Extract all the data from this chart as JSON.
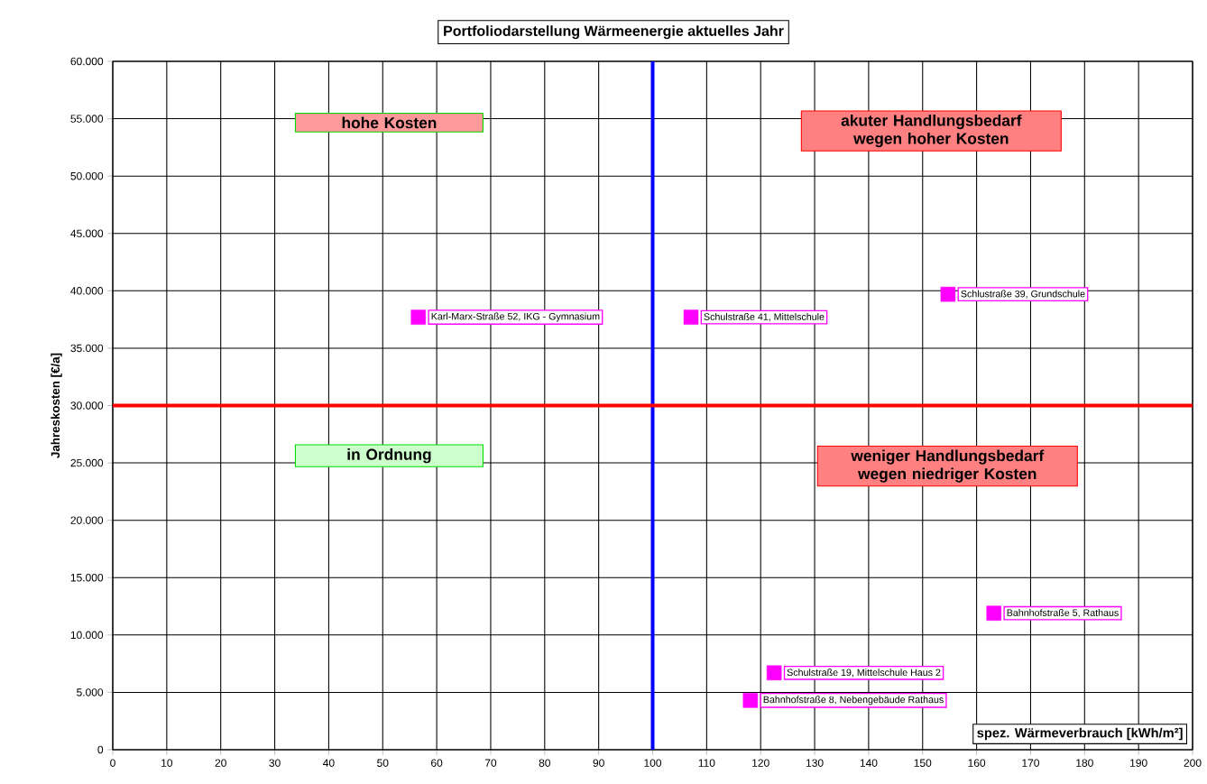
{
  "chart_data": {
    "type": "scatter",
    "title": "Portfoliodarstellung Wärmeenergie aktuelles Jahr",
    "xlabel": "spez. Wärmeverbrauch [kWh/m²]",
    "ylabel": "Jahreskosten [€/a]",
    "x": [
      56.6,
      107.1,
      154.7,
      163.2,
      122.5,
      118.1
    ],
    "values": [
      37700,
      37700,
      39700,
      11900,
      6700,
      4300
    ],
    "color": "#ff00ff",
    "marker": "square",
    "grid": true,
    "xlim": [
      0,
      200
    ],
    "xticks": [
      0,
      10,
      20,
      30,
      40,
      50,
      60,
      70,
      80,
      90,
      100,
      110,
      120,
      130,
      140,
      150,
      160,
      170,
      180,
      190,
      200
    ],
    "ylim": [
      0,
      60000
    ],
    "yticks": [
      {
        "value": 0,
        "label": "0"
      },
      {
        "value": 5000,
        "label": "5.000"
      },
      {
        "value": 10000,
        "label": "10.000"
      },
      {
        "value": 15000,
        "label": "15.000"
      },
      {
        "value": 20000,
        "label": "20.000"
      },
      {
        "value": 25000,
        "label": "25.000"
      },
      {
        "value": 30000,
        "label": "30.000"
      },
      {
        "value": 35000,
        "label": "35.000"
      },
      {
        "value": 40000,
        "label": "40.000"
      },
      {
        "value": 45000,
        "label": "45.000"
      },
      {
        "value": 50000,
        "label": "50.000"
      },
      {
        "value": 55000,
        "label": "55.000"
      },
      {
        "value": 60000,
        "label": "60.000"
      }
    ],
    "ref_lines": [
      {
        "axis": "x",
        "value": 100,
        "color": "#0000ff"
      },
      {
        "axis": "y",
        "value": 30000,
        "color": "#ff0000"
      }
    ],
    "annotations": [
      "hohe Kosten",
      "akuter Handlungsbedarf wegen hoher Kosten",
      "in Ordnung",
      "weniger Handlungsbedarf wegen niedriger Kosten",
      {
        "text": "Karl-Marx-Straße 52, IKG - Gymnasium",
        "x": 56.6,
        "y": 37700
      },
      {
        "text": "Schulstraße 41, Mittelschule",
        "x": 107.1,
        "y": 37700
      },
      {
        "text": "Schlustraße 39, Grundschule",
        "x": 154.7,
        "y": 39700
      },
      {
        "text": "Bahnhofstraße 5, Rathaus",
        "x": 163.2,
        "y": 11900
      },
      {
        "text": "Schulstraße 19, Mittelschule Haus 2",
        "x": 122.5,
        "y": 6700
      },
      {
        "text": "Bahnhofstraße 8, Nebengebäude Rathaus",
        "x": 118.1,
        "y": 4300
      }
    ]
  }
}
